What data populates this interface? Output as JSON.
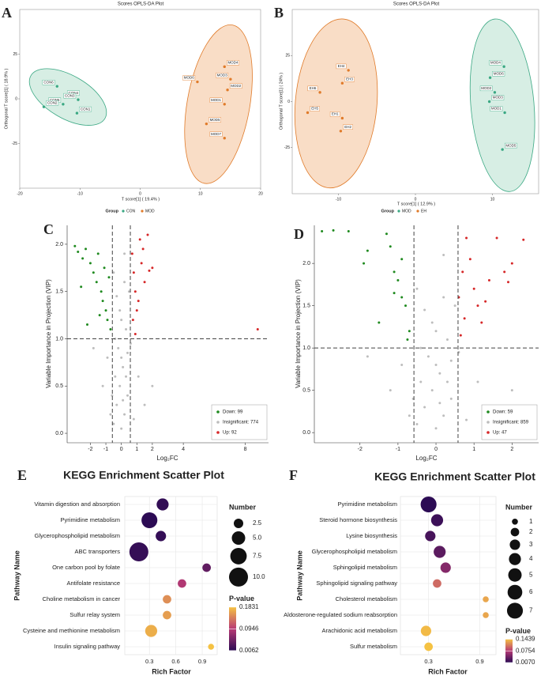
{
  "chart_data": [
    {
      "type": "scatter",
      "panel_label": "A",
      "title": "Scores OPLS-DA Plot",
      "x_label": "T score[1] ( 19.4% )",
      "y_label": "Orthogonal T score[1] ( 18.9% )",
      "xlim": [
        -20,
        20
      ],
      "xticks": [
        -20,
        -10,
        0,
        10,
        20
      ],
      "ylim": [
        -50,
        50
      ],
      "yticks": [
        -25,
        0,
        25
      ],
      "legend_title": "Group",
      "series": [
        {
          "name": "CON",
          "color": "#3aa883",
          "fill": "#cdeadd",
          "x": [
            -13.8,
            -12.5,
            -10.3,
            -10.5,
            -12.8,
            -16
          ],
          "values": [
            7,
            1,
            -0.5,
            -8,
            -3,
            -4.5
          ],
          "labels": [
            "CON6",
            "CON4",
            "CON3",
            "CON1",
            "CON5",
            "CON2"
          ],
          "ellipse": {
            "cx": -12,
            "cy": 1,
            "rx": 7.1,
            "ry": 12,
            "angle": 30
          }
        },
        {
          "name": "MOD",
          "color": "#e07b2a",
          "fill": "#f7d4b8",
          "x": [
            9.5,
            14,
            15,
            14.5,
            14,
            11,
            14
          ],
          "values": [
            9.5,
            18,
            11,
            5,
            -3,
            -14,
            -22
          ],
          "labels": [
            "MOD6",
            "MOD4",
            "MOD3",
            "MOD2",
            "MOD1",
            "MOD5",
            "MOD7"
          ],
          "ellipse": {
            "cx": 13,
            "cy": -3,
            "rx": 5.2,
            "ry": 45,
            "angle": 10
          }
        }
      ]
    },
    {
      "type": "scatter",
      "panel_label": "B",
      "title": "Scores OPLS-DA Plot",
      "x_label": "T score[1] ( 12.9% )",
      "y_label": "Orthogonal T score[1] ( 24% )",
      "xlim": [
        -16,
        16
      ],
      "xticks": [
        -10,
        0,
        10
      ],
      "ylim": [
        -50,
        50
      ],
      "yticks": [
        -25,
        0,
        25
      ],
      "legend_title": "Group",
      "series": [
        {
          "name": "MOD",
          "color": "#3aa883",
          "fill": "#cdeadd",
          "x": [
            11.5,
            9.7,
            10.3,
            9.6,
            11.6,
            11.3
          ],
          "values": [
            19,
            13,
            5,
            0,
            -6,
            -26
          ],
          "labels": [
            "MOD4",
            "MOD6",
            "MOD2",
            "MOD3",
            "MOD1",
            "MOD5"
          ],
          "ellipse": {
            "cx": 11.3,
            "cy": -2,
            "rx": 4.1,
            "ry": 47,
            "angle": -5
          }
        },
        {
          "name": "EH",
          "color": "#e07b2a",
          "fill": "#f7d4b8",
          "x": [
            -8.7,
            -9.5,
            -12.4,
            -14,
            -9.5,
            -9.7
          ],
          "values": [
            17,
            10,
            5,
            -6,
            -9,
            -16
          ],
          "labels": [
            "EH4",
            "EH3",
            "EH6",
            "EH5",
            "EH1",
            "EH2"
          ],
          "ellipse": {
            "cx": -10.3,
            "cy": -1,
            "rx": 5.3,
            "ry": 46,
            "angle": 5
          }
        }
      ]
    },
    {
      "type": "volcano",
      "panel_label": "C",
      "x_label": "Log₂FC",
      "y_label": "Variable Importance in Projection (VIP)",
      "xlim": [
        -3.5,
        9.5
      ],
      "xticks": [
        -2,
        -1,
        0,
        1,
        2,
        4,
        8
      ],
      "ylim": [
        -0.1,
        2.2
      ],
      "yticks": [
        {
          "value": 0,
          "label": "0.0"
        },
        0.5,
        {
          "value": 1,
          "label": "1.0"
        },
        1.5,
        {
          "value": 2,
          "label": "2.0"
        }
      ],
      "vlines": [
        -0.58,
        0.58
      ],
      "hline": 1,
      "series": [
        {
          "name": "Down: 99",
          "color": "#1f8a1f",
          "x": [
            -3.0,
            -2.8,
            -2.5,
            -2.3,
            -2.0,
            -1.8,
            -1.6,
            -1.5,
            -1.3,
            -1.2,
            -1.0,
            -0.9,
            -0.8,
            -2.6,
            -2.2,
            -1.1,
            -0.7,
            -1.4
          ],
          "values": [
            1.98,
            1.92,
            1.85,
            1.95,
            1.8,
            1.7,
            1.6,
            1.9,
            1.5,
            1.4,
            1.3,
            1.2,
            1.65,
            1.55,
            1.15,
            1.75,
            1.1,
            1.25
          ]
        },
        {
          "name": "Insignificant: 774",
          "color": "#bdbdbd",
          "x": [
            -0.5,
            -0.3,
            0.0,
            0.2,
            0.4,
            -0.4,
            0.1,
            -0.2,
            0.3,
            -0.1,
            0.5,
            -0.5,
            0.2,
            0.0,
            -0.3,
            0.4,
            -0.1,
            0.1,
            -1.2,
            -0.9,
            1.1,
            1.5,
            2.0,
            -1.8,
            0.8,
            -0.7,
            0.6,
            -0.6,
            0.0,
            0.3,
            -0.4,
            0.2
          ],
          "values": [
            0.1,
            0.3,
            0.05,
            0.2,
            0.4,
            0.6,
            0.7,
            0.9,
            1.1,
            1.3,
            1.5,
            1.7,
            1.9,
            1.2,
            1.45,
            0.85,
            0.5,
            0.35,
            0.5,
            0.8,
            0.6,
            0.3,
            0.5,
            0.9,
            0.15,
            0.2,
            0.95,
            0.4,
            0.8,
            0.6,
            1.0,
            1.6
          ]
        },
        {
          "name": "Up: 92",
          "color": "#d62728",
          "x": [
            0.7,
            0.8,
            0.9,
            1.0,
            1.2,
            1.3,
            1.5,
            1.7,
            0.75,
            1.1,
            2.0,
            0.9,
            1.4,
            1.8,
            8.8
          ],
          "values": [
            1.9,
            1.7,
            1.5,
            1.3,
            2.05,
            1.8,
            1.6,
            2.1,
            1.2,
            1.4,
            1.75,
            1.05,
            1.95,
            1.72,
            1.1
          ]
        }
      ]
    },
    {
      "type": "volcano",
      "panel_label": "D",
      "x_label": "Log₂FC",
      "y_label": "Variable Importance in Projection (VIP)",
      "xlim": [
        -3.2,
        2.7
      ],
      "xticks": [
        -2,
        -1,
        0,
        1,
        2
      ],
      "ylim": [
        -0.12,
        2.45
      ],
      "yticks": [
        {
          "value": 0,
          "label": "0.0"
        },
        0.5,
        {
          "value": 1,
          "label": "1.0"
        },
        1.5,
        {
          "value": 2,
          "label": "2.0"
        }
      ],
      "vlines": [
        -0.58,
        0.58
      ],
      "hline": 1,
      "series": [
        {
          "name": "Down: 59",
          "color": "#1f8a1f",
          "x": [
            -3.0,
            -2.7,
            -2.3,
            -1.8,
            -1.9,
            -1.5,
            -1.3,
            -1.2,
            -1.1,
            -1.0,
            -0.9,
            -0.8,
            -0.7,
            -1.1,
            -0.75,
            -0.9
          ],
          "values": [
            2.38,
            2.39,
            2.38,
            2.15,
            2.0,
            1.3,
            2.35,
            2.2,
            1.9,
            1.8,
            1.6,
            1.5,
            1.2,
            1.65,
            1.1,
            2.05
          ]
        },
        {
          "name": "Insignificant: 859",
          "color": "#bdbdbd",
          "x": [
            -0.5,
            -0.3,
            0.0,
            0.2,
            0.4,
            -0.4,
            0.1,
            -0.2,
            0.3,
            -0.1,
            0.5,
            -0.5,
            0.2,
            0.0,
            -0.3,
            0.4,
            -0.1,
            0.1,
            -1.2,
            -0.9,
            1.1,
            1.5,
            2.0,
            -1.8,
            0.8,
            -0.7,
            0.6,
            -0.6,
            0.0,
            0.3,
            -0.4,
            0.2
          ],
          "values": [
            0.1,
            0.3,
            0.05,
            0.2,
            0.4,
            0.6,
            0.7,
            0.9,
            1.1,
            1.3,
            1.5,
            1.7,
            2.1,
            1.2,
            1.45,
            0.85,
            0.5,
            0.35,
            0.5,
            0.8,
            0.6,
            0.3,
            0.5,
            0.9,
            0.15,
            0.2,
            0.95,
            0.4,
            0.8,
            0.6,
            1.0,
            1.6
          ]
        },
        {
          "name": "Up: 47",
          "color": "#d62728",
          "x": [
            0.6,
            0.7,
            0.8,
            0.9,
            1.0,
            1.1,
            1.2,
            1.4,
            1.6,
            1.8,
            2.0,
            2.3,
            1.9,
            0.75,
            1.3,
            0.65
          ],
          "values": [
            1.6,
            1.9,
            2.3,
            2.05,
            1.7,
            1.5,
            1.3,
            1.8,
            2.3,
            1.9,
            2.0,
            2.28,
            1.78,
            1.35,
            1.55,
            1.15
          ]
        }
      ]
    },
    {
      "type": "bubble",
      "panel_label": "E",
      "title": "KEGG Enrichment Scatter Plot",
      "x_label": "Rich Factor",
      "y_label": "Pathway Name",
      "categories": [
        "Vitamin digestion and absorption",
        "Pyrimidine metabolism",
        "Glycerophospholipid metabolism",
        "ABC transporters",
        "One carbon pool by folate",
        "Antifolate resistance",
        "Choline metabolism in cancer",
        "Sulfur relay system",
        "Cysteine and methionine metabolism",
        "Insulin signaling pathway"
      ],
      "values": [
        0.45,
        0.3,
        0.43,
        0.18,
        0.95,
        0.67,
        0.5,
        0.5,
        0.32,
        1.0
      ],
      "sizes": [
        4,
        7,
        3,
        10,
        2,
        2,
        2,
        2,
        4,
        1
      ],
      "pvalues": [
        0.01,
        0.0062,
        0.011,
        0.012,
        0.04,
        0.09,
        0.15,
        0.16,
        0.17,
        0.1831
      ],
      "xlim": [
        0.02,
        1.07
      ],
      "xticks": [
        0.3,
        0.6,
        0.9
      ],
      "size_title": "Number",
      "size_ticks": [
        2.5,
        {
          "value": 5,
          "label": "5.0"
        },
        7.5,
        {
          "value": 10,
          "label": "10.0"
        }
      ],
      "color_title": "P-value",
      "clim": [
        0.0062,
        0.1831
      ],
      "pticks": [
        0.1831,
        0.0946,
        0.0062
      ],
      "colormap": [
        "#2c0b54",
        "#b83a75",
        "#f5c243"
      ]
    },
    {
      "type": "bubble",
      "panel_label": "F",
      "title": "KEGG Enrichment Scatter Plot",
      "x_label": "Rich Factor",
      "y_label": "Pathway Name",
      "categories": [
        "Pyrimidine metabolism",
        "Steroid hormone biosynthesis",
        "Lysine biosynthesis",
        "Glycerophospholipid metabolism",
        "Sphingolipid metabolism",
        "Sphingolipid signaling pathway",
        "Cholesterol metabolism",
        "Aldosterone-regulated sodium reabsorption",
        "Arachidonic acid metabolism",
        "Sulfur metabolism"
      ],
      "values": [
        0.3,
        0.4,
        0.32,
        0.43,
        0.5,
        0.4,
        0.97,
        0.97,
        0.27,
        0.3
      ],
      "sizes": [
        7,
        4,
        3,
        4,
        3,
        2,
        1,
        1,
        3,
        2
      ],
      "pvalues": [
        0.007,
        0.015,
        0.02,
        0.03,
        0.05,
        0.1,
        0.13,
        0.13,
        0.14,
        0.1439
      ],
      "xlim": [
        -0.03,
        1.09
      ],
      "xticks": [
        0.3,
        0.9
      ],
      "size_title": "Number",
      "size_ticks": [
        1,
        2,
        3,
        4,
        5,
        6,
        7
      ],
      "color_title": "P-value",
      "clim": [
        0.007,
        0.1439
      ],
      "pticks": [
        0.1439,
        0.0754,
        {
          "value": 0.007,
          "label": "0.0070"
        }
      ],
      "colormap": [
        "#2c0b54",
        "#b83a75",
        "#f5c243"
      ]
    }
  ]
}
